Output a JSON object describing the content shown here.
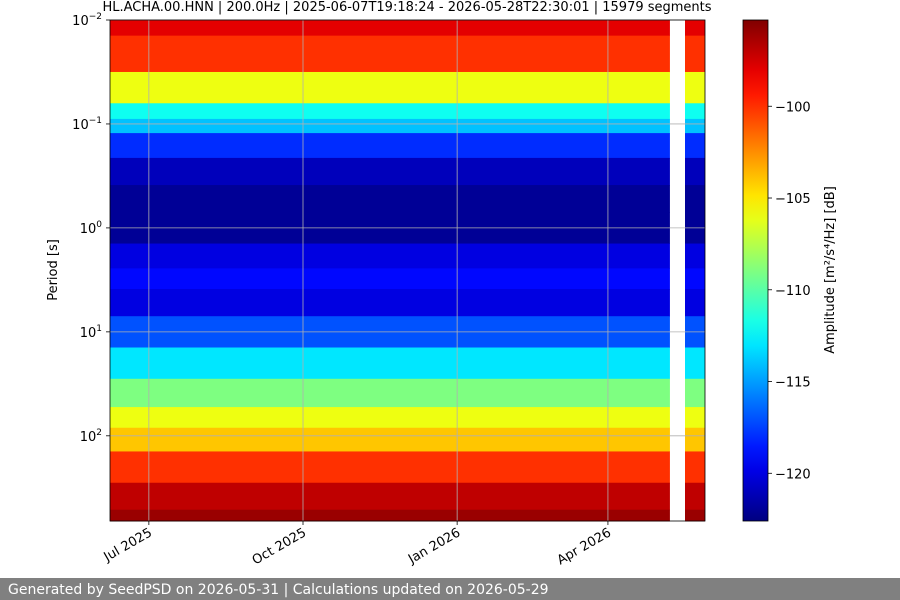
{
  "chart_data": {
    "type": "spectrogram",
    "title": "HL.ACHA.00.HNN | 200.0Hz | 2025-06-07T19:18:24 - 2026-05-28T22:30:01 | 15979 segments",
    "y_label": "Period [s]",
    "colorbar_label": "Amplitude [m²/s⁴/Hz] [dB]",
    "xlim": [
      "2025-06-07T19:18:24",
      "2026-05-28T22:30:01"
    ],
    "xticks": [
      {
        "value": "2025-07-01",
        "label": "Jul 2025"
      },
      {
        "value": "2025-10-01",
        "label": "Oct 2025"
      },
      {
        "value": "2026-01-01",
        "label": "Jan 2026"
      },
      {
        "value": "2026-04-01",
        "label": "Apr 2026"
      }
    ],
    "y_log": true,
    "ylim": [
      0.01,
      660
    ],
    "yticks": [
      {
        "value": 0.01,
        "label": "10",
        "sup": "−2"
      },
      {
        "value": 0.1,
        "label": "10",
        "sup": "−1"
      },
      {
        "value": 1,
        "label": "10",
        "sup": "0"
      },
      {
        "value": 10,
        "label": "10",
        "sup": "1"
      },
      {
        "value": 100,
        "label": "10",
        "sup": "2"
      }
    ],
    "grid": true,
    "colormap": "jet",
    "clim": [
      -122.6,
      -95.3
    ],
    "cticks": [
      {
        "value": -100,
        "label": "−100"
      },
      {
        "value": -105,
        "label": "−105"
      },
      {
        "value": -110,
        "label": "−110"
      },
      {
        "value": -115,
        "label": "−115"
      },
      {
        "value": -120,
        "label": "−120"
      }
    ],
    "gap": [
      "2026-05-08",
      "2026-05-17"
    ],
    "periods": [
      0.01,
      0.02,
      0.05,
      0.08,
      0.1,
      0.15,
      0.3,
      0.5,
      1,
      2,
      3,
      5,
      10,
      20,
      40,
      70,
      100,
      200,
      400,
      660
    ],
    "values": [
      -98,
      -100,
      -106,
      -112,
      -114,
      -118,
      -121,
      -122,
      -122,
      -120,
      -119,
      -120,
      -117,
      -113,
      -109,
      -106,
      -104,
      -100,
      -97,
      -96
    ]
  },
  "footer": "Generated by SeedPSD on 2026-05-31 | Calculations updated on 2026-05-29"
}
